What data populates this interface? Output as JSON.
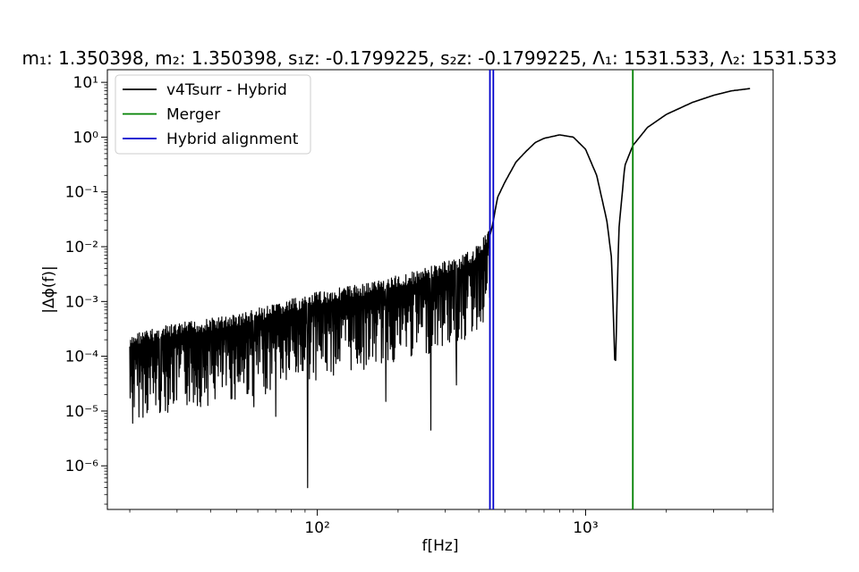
{
  "chart_data": {
    "type": "line",
    "title": "m₁: 1.350398, m₂: 1.350398, s₁z: -0.1799225, s₂z: -0.1799225, Λ₁: 1531.533, Λ₂: 1531.533",
    "xlabel": "f[Hz]",
    "ylabel": "|Δϕ(f)|",
    "xscale": "log",
    "yscale": "log",
    "xlim": [
      16.5,
      5000
    ],
    "ylim": [
      1.6e-07,
      17
    ],
    "xticks": [
      {
        "value": 100,
        "label": "10²"
      },
      {
        "value": 1000,
        "label": "10³"
      }
    ],
    "yticks": [
      {
        "value": 1e-06,
        "label": "10⁻⁶"
      },
      {
        "value": 1e-05,
        "label": "10⁻⁵"
      },
      {
        "value": 0.0001,
        "label": "10⁻⁴"
      },
      {
        "value": 0.001,
        "label": "10⁻³"
      },
      {
        "value": 0.01,
        "label": "10⁻²"
      },
      {
        "value": 0.1,
        "label": "10⁻¹"
      },
      {
        "value": 1,
        "label": "10⁰"
      },
      {
        "value": 10,
        "label": "10¹"
      }
    ],
    "grid": false,
    "legend_position": "upper left",
    "series": [
      {
        "name": "v4Tsurr - Hybrid",
        "color": "#000000",
        "style": "oscillating envelope below alignment frequency",
        "x": [
          20,
          21,
          23,
          25,
          30,
          35,
          40,
          50,
          60,
          70,
          80,
          92,
          100,
          120,
          150,
          180,
          200,
          250,
          265,
          300,
          350,
          400,
          430,
          440
        ],
        "y": [
          0.0002,
          0.00028,
          0.0003,
          0.00033,
          0.0004,
          0.00045,
          0.0005,
          0.0006,
          0.00075,
          0.0009,
          0.0011,
          0.0013,
          0.0015,
          0.0018,
          0.0022,
          0.0027,
          0.003,
          0.004,
          0.0045,
          0.0055,
          0.007,
          0.011,
          0.02,
          0.03
        ],
        "dips": [
          {
            "x": 20.5,
            "y": 6e-06
          },
          {
            "x": 23,
            "y": 2e-05
          },
          {
            "x": 26,
            "y": 1e-05
          },
          {
            "x": 35,
            "y": 2e-05
          },
          {
            "x": 58,
            "y": 1.2e-05
          },
          {
            "x": 70,
            "y": 8e-06
          },
          {
            "x": 92,
            "y": 4e-07
          },
          {
            "x": 180,
            "y": 1.5e-05
          },
          {
            "x": 265,
            "y": 4.5e-06
          },
          {
            "x": 330,
            "y": 3e-05
          }
        ]
      },
      {
        "name": "v4Tsurr - Hybrid",
        "color": "#000000",
        "style": "smooth segment after alignment",
        "x": [
          440,
          450,
          470,
          500,
          550,
          600,
          650,
          700,
          800,
          900,
          1000,
          1100,
          1200,
          1250,
          1290,
          1330,
          1400,
          1500,
          1700,
          2000,
          2500,
          3000,
          3500,
          4100
        ],
        "y": [
          0.016,
          0.025,
          0.08,
          0.15,
          0.35,
          0.55,
          0.8,
          0.95,
          1.1,
          1.0,
          0.6,
          0.2,
          0.03,
          0.006,
          4.5e-05,
          0.02,
          0.3,
          0.7,
          1.5,
          2.6,
          4.3,
          5.8,
          7.0,
          7.7
        ]
      }
    ],
    "vlines": [
      {
        "name": "Merger",
        "x": 1500,
        "color": "#008000"
      },
      {
        "name": "Hybrid alignment",
        "x": 440,
        "color": "#0000cc"
      },
      {
        "name": "Hybrid alignment",
        "x": 453,
        "color": "#0000cc"
      }
    ],
    "legend": [
      {
        "label": "v4Tsurr - Hybrid",
        "color": "#000000"
      },
      {
        "label": "Merger",
        "color": "#008000"
      },
      {
        "label": "Hybrid alignment",
        "color": "#0000cc"
      }
    ]
  }
}
